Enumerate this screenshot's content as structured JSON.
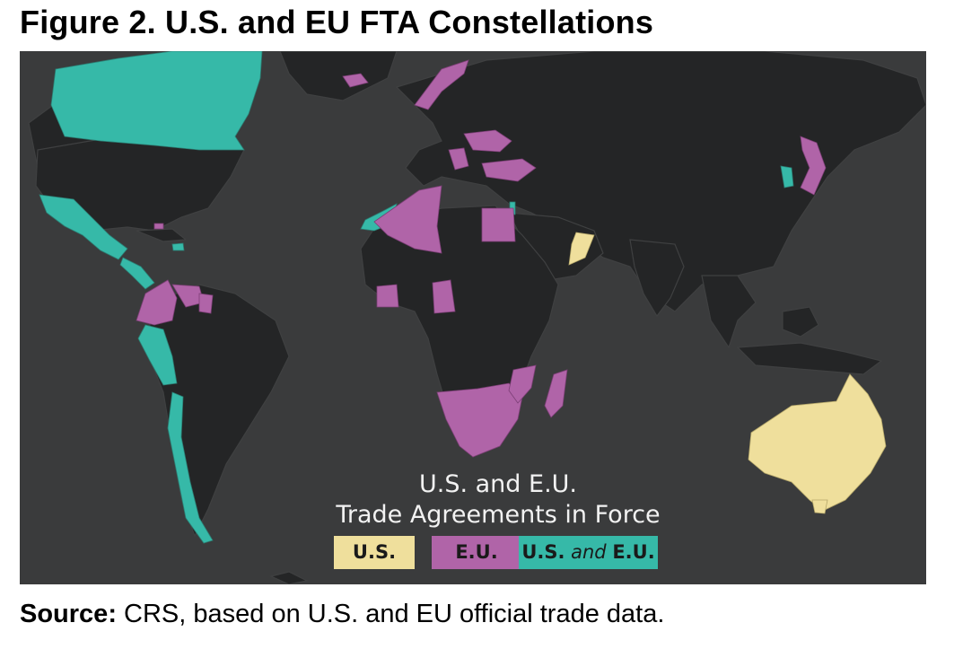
{
  "figure": {
    "title": "Figure 2. U.S. and EU FTA Constellations"
  },
  "map": {
    "legend": {
      "title_line1": "U.S. and E.U.",
      "title_line2": "Trade Agreements in Force",
      "items": [
        {
          "key": "us",
          "label": "U.S.",
          "color": "#efdf9c"
        },
        {
          "key": "eu",
          "label": "E.U.",
          "color": "#b064a8"
        },
        {
          "key": "both",
          "label_pre": "U.S.",
          "label_mid": " and ",
          "label_post": "E.U.",
          "color": "#36b9a8"
        }
      ]
    },
    "colors": {
      "ocean": "#3a3b3c",
      "land": "#242526",
      "border": "#3f4041",
      "us": "#efdf9c",
      "eu": "#b064a8",
      "both": "#36b9a8"
    }
  },
  "source": {
    "label": "Source:",
    "text": " CRS, based on U.S. and EU official trade data."
  }
}
